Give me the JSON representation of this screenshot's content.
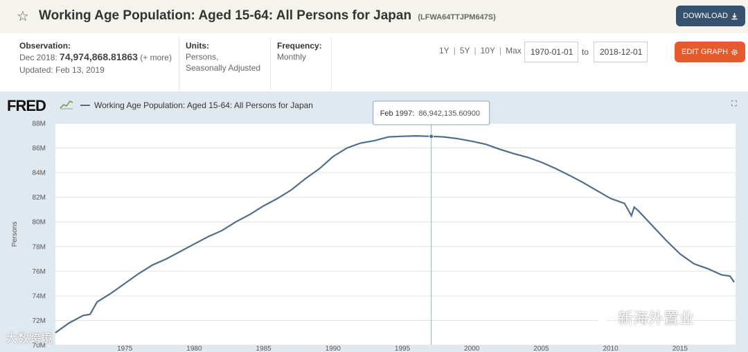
{
  "header": {
    "star_icon": "star-outline-icon",
    "title": "Working Age Population: Aged 15-64: All Persons for Japan",
    "series_id": "(LFWA64TTJPM647S)",
    "download_label": "DOWNLOAD",
    "download_icon": "download-icon"
  },
  "meta": {
    "observation_label": "Observation:",
    "observation_date": "Dec 2018:",
    "observation_value": "74,974,868.81863",
    "observation_more": "(+ more)",
    "updated": "Updated: Feb 13, 2019",
    "units_label": "Units:",
    "units_line1": "Persons,",
    "units_line2": "Seasonally Adjusted",
    "frequency_label": "Frequency:",
    "frequency_value": "Monthly"
  },
  "controls": {
    "ranges": [
      "1Y",
      "5Y",
      "10Y",
      "Max"
    ],
    "range_sep": "|",
    "date_from": "1970-01-01",
    "to_label": "to",
    "date_to": "2018-12-01",
    "edit_label": "EDIT GRAPH",
    "edit_icon": "gear-icon"
  },
  "chart_header": {
    "logo": "FRED",
    "legend_label": "Working Age Population: Aged 15-64: All Persons for Japan",
    "fullscreen_icon": "fullscreen-icon"
  },
  "tooltip": {
    "date": "Feb 1997:",
    "value": "86,942,135.60900"
  },
  "watermarks": {
    "right": "新海外置业",
    "left": "大数跨境"
  },
  "chart_data": {
    "type": "line",
    "title": "",
    "xlabel": "",
    "ylabel": "Persons",
    "xlim": [
      1970,
      2019
    ],
    "ylim": [
      70,
      88
    ],
    "x_ticks": [
      1975,
      1980,
      1985,
      1990,
      1995,
      2000,
      2005,
      2010,
      2015
    ],
    "y_ticks": [
      70,
      72,
      74,
      76,
      78,
      80,
      82,
      84,
      86,
      88
    ],
    "y_tick_labels": [
      "70M",
      "72M",
      "74M",
      "76M",
      "78M",
      "80M",
      "82M",
      "84M",
      "86M",
      "88M"
    ],
    "grid": "horizontal",
    "legend": "top-left",
    "highlight": {
      "x": 1997.08,
      "y": 86.942
    },
    "series": [
      {
        "color": "#4f6d8a",
        "x": [
          1970.0,
          1971.0,
          1972.0,
          1972.5,
          1973.0,
          1974.0,
          1975.0,
          1976.0,
          1977.0,
          1978.0,
          1979.0,
          1980.0,
          1981.0,
          1982.0,
          1983.0,
          1984.0,
          1985.0,
          1986.0,
          1987.0,
          1988.0,
          1989.0,
          1990.0,
          1991.0,
          1992.0,
          1993.0,
          1994.0,
          1995.0,
          1996.0,
          1997.08,
          1998.0,
          1999.0,
          2000.0,
          2001.0,
          2002.0,
          2003.0,
          2004.0,
          2005.0,
          2006.0,
          2007.0,
          2008.0,
          2009.0,
          2010.0,
          2011.0,
          2011.5,
          2011.7,
          2012.0,
          2013.0,
          2014.0,
          2015.0,
          2016.0,
          2017.0,
          2018.0,
          2018.6,
          2018.9
        ],
        "values": [
          71.0,
          71.8,
          72.4,
          72.5,
          73.5,
          74.2,
          75.0,
          75.8,
          76.5,
          77.0,
          77.6,
          78.2,
          78.8,
          79.3,
          80.0,
          80.6,
          81.3,
          81.9,
          82.6,
          83.5,
          84.3,
          85.3,
          86.0,
          86.4,
          86.6,
          86.9,
          86.95,
          86.98,
          86.94,
          86.9,
          86.75,
          86.55,
          86.3,
          85.9,
          85.55,
          85.25,
          84.85,
          84.35,
          83.8,
          83.2,
          82.55,
          81.9,
          81.5,
          80.5,
          81.2,
          80.9,
          79.7,
          78.5,
          77.4,
          76.6,
          76.2,
          75.7,
          75.6,
          75.1
        ]
      }
    ]
  }
}
